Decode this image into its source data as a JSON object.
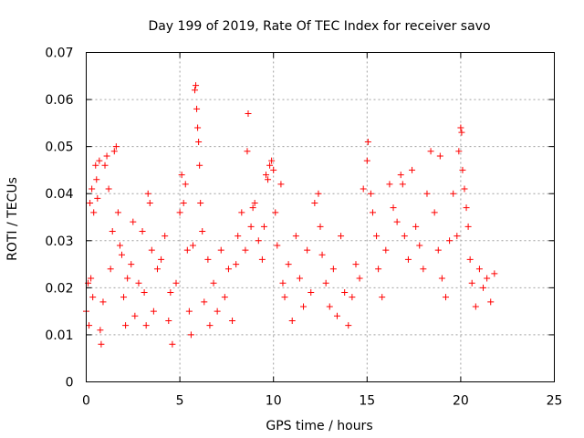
{
  "chart_data": {
    "type": "scatter",
    "title": "Day 199 of 2019, Rate Of TEC Index for receiver savo",
    "xlabel": "GPS time / hours",
    "ylabel": "ROTI / TECUs",
    "xlim": [
      0,
      25
    ],
    "ylim": [
      0,
      0.07
    ],
    "x_ticks": [
      "0",
      "5",
      "10",
      "15",
      "20",
      "25"
    ],
    "y_ticks": [
      "0",
      "0.01",
      "0.02",
      "0.03",
      "0.04",
      "0.05",
      "0.06",
      "0.07"
    ],
    "grid": true,
    "marker": "+",
    "color": "#ff0000",
    "series": [
      {
        "points": [
          [
            0.0,
            0.015
          ],
          [
            0.1,
            0.021
          ],
          [
            0.15,
            0.012
          ],
          [
            0.2,
            0.038
          ],
          [
            0.25,
            0.022
          ],
          [
            0.3,
            0.041
          ],
          [
            0.35,
            0.018
          ],
          [
            0.4,
            0.036
          ],
          [
            0.5,
            0.046
          ],
          [
            0.55,
            0.043
          ],
          [
            0.6,
            0.039
          ],
          [
            0.7,
            0.047
          ],
          [
            0.75,
            0.011
          ],
          [
            0.8,
            0.008
          ],
          [
            0.9,
            0.017
          ],
          [
            1.0,
            0.046
          ],
          [
            1.1,
            0.048
          ],
          [
            1.2,
            0.041
          ],
          [
            1.3,
            0.024
          ],
          [
            1.4,
            0.032
          ],
          [
            1.5,
            0.049
          ],
          [
            1.6,
            0.05
          ],
          [
            1.7,
            0.036
          ],
          [
            1.8,
            0.029
          ],
          [
            1.9,
            0.027
          ],
          [
            2.0,
            0.018
          ],
          [
            2.1,
            0.012
          ],
          [
            2.2,
            0.022
          ],
          [
            2.4,
            0.025
          ],
          [
            2.5,
            0.034
          ],
          [
            2.6,
            0.014
          ],
          [
            2.8,
            0.021
          ],
          [
            3.0,
            0.032
          ],
          [
            3.1,
            0.019
          ],
          [
            3.2,
            0.012
          ],
          [
            3.3,
            0.04
          ],
          [
            3.4,
            0.038
          ],
          [
            3.5,
            0.028
          ],
          [
            3.6,
            0.015
          ],
          [
            3.8,
            0.024
          ],
          [
            4.0,
            0.026
          ],
          [
            4.2,
            0.031
          ],
          [
            4.4,
            0.013
          ],
          [
            4.5,
            0.019
          ],
          [
            4.6,
            0.008
          ],
          [
            4.8,
            0.021
          ],
          [
            5.0,
            0.036
          ],
          [
            5.1,
            0.044
          ],
          [
            5.2,
            0.038
          ],
          [
            5.3,
            0.042
          ],
          [
            5.4,
            0.028
          ],
          [
            5.5,
            0.015
          ],
          [
            5.6,
            0.01
          ],
          [
            5.7,
            0.029
          ],
          [
            5.8,
            0.062
          ],
          [
            5.85,
            0.063
          ],
          [
            5.9,
            0.058
          ],
          [
            5.95,
            0.054
          ],
          [
            6.0,
            0.051
          ],
          [
            6.05,
            0.046
          ],
          [
            6.1,
            0.038
          ],
          [
            6.2,
            0.032
          ],
          [
            6.3,
            0.017
          ],
          [
            6.5,
            0.026
          ],
          [
            6.6,
            0.012
          ],
          [
            6.8,
            0.021
          ],
          [
            7.0,
            0.015
          ],
          [
            7.2,
            0.028
          ],
          [
            7.4,
            0.018
          ],
          [
            7.6,
            0.024
          ],
          [
            7.8,
            0.013
          ],
          [
            8.0,
            0.025
          ],
          [
            8.1,
            0.031
          ],
          [
            8.3,
            0.036
          ],
          [
            8.5,
            0.028
          ],
          [
            8.6,
            0.049
          ],
          [
            8.65,
            0.057
          ],
          [
            8.8,
            0.033
          ],
          [
            8.9,
            0.037
          ],
          [
            9.0,
            0.038
          ],
          [
            9.2,
            0.03
          ],
          [
            9.4,
            0.026
          ],
          [
            9.5,
            0.033
          ],
          [
            9.6,
            0.044
          ],
          [
            9.7,
            0.043
          ],
          [
            9.8,
            0.046
          ],
          [
            9.9,
            0.047
          ],
          [
            10.0,
            0.045
          ],
          [
            10.1,
            0.036
          ],
          [
            10.2,
            0.029
          ],
          [
            10.4,
            0.042
          ],
          [
            10.5,
            0.021
          ],
          [
            10.6,
            0.018
          ],
          [
            10.8,
            0.025
          ],
          [
            11.0,
            0.013
          ],
          [
            11.2,
            0.031
          ],
          [
            11.4,
            0.022
          ],
          [
            11.6,
            0.016
          ],
          [
            11.8,
            0.028
          ],
          [
            12.0,
            0.019
          ],
          [
            12.2,
            0.038
          ],
          [
            12.4,
            0.04
          ],
          [
            12.5,
            0.033
          ],
          [
            12.6,
            0.027
          ],
          [
            12.8,
            0.021
          ],
          [
            13.0,
            0.016
          ],
          [
            13.2,
            0.024
          ],
          [
            13.4,
            0.014
          ],
          [
            13.6,
            0.031
          ],
          [
            13.8,
            0.019
          ],
          [
            14.0,
            0.012
          ],
          [
            14.2,
            0.018
          ],
          [
            14.4,
            0.025
          ],
          [
            14.6,
            0.022
          ],
          [
            14.8,
            0.041
          ],
          [
            15.0,
            0.047
          ],
          [
            15.05,
            0.051
          ],
          [
            15.2,
            0.04
          ],
          [
            15.3,
            0.036
          ],
          [
            15.5,
            0.031
          ],
          [
            15.6,
            0.024
          ],
          [
            15.8,
            0.018
          ],
          [
            16.0,
            0.028
          ],
          [
            16.2,
            0.042
          ],
          [
            16.4,
            0.037
          ],
          [
            16.6,
            0.034
          ],
          [
            16.8,
            0.044
          ],
          [
            16.9,
            0.042
          ],
          [
            17.0,
            0.031
          ],
          [
            17.2,
            0.026
          ],
          [
            17.4,
            0.045
          ],
          [
            17.6,
            0.033
          ],
          [
            17.8,
            0.029
          ],
          [
            18.0,
            0.024
          ],
          [
            18.2,
            0.04
          ],
          [
            18.4,
            0.049
          ],
          [
            18.6,
            0.036
          ],
          [
            18.8,
            0.028
          ],
          [
            18.9,
            0.048
          ],
          [
            19.0,
            0.022
          ],
          [
            19.2,
            0.018
          ],
          [
            19.4,
            0.03
          ],
          [
            19.6,
            0.04
          ],
          [
            19.8,
            0.031
          ],
          [
            19.9,
            0.049
          ],
          [
            20.0,
            0.054
          ],
          [
            20.05,
            0.053
          ],
          [
            20.1,
            0.045
          ],
          [
            20.2,
            0.041
          ],
          [
            20.3,
            0.037
          ],
          [
            20.4,
            0.033
          ],
          [
            20.5,
            0.026
          ],
          [
            20.6,
            0.021
          ],
          [
            20.8,
            0.016
          ],
          [
            21.0,
            0.024
          ],
          [
            21.2,
            0.02
          ],
          [
            21.4,
            0.022
          ],
          [
            21.6,
            0.017
          ],
          [
            21.8,
            0.023
          ]
        ]
      }
    ]
  }
}
